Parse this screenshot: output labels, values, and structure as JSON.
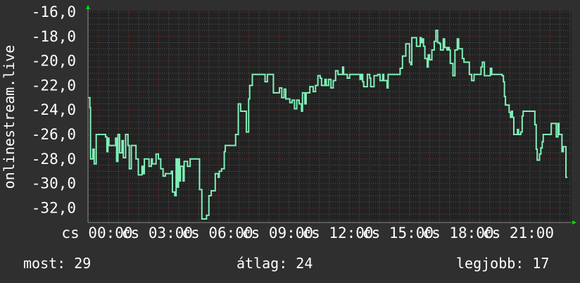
{
  "chart_data": {
    "type": "line",
    "title": "",
    "ylabel": "onlinestream.live",
    "xlabel": "",
    "ylim": [
      -33.2,
      -15.9
    ],
    "xlim": [
      "23:28",
      "23:22"
    ],
    "yticks": [
      "-16,0",
      "-18,0",
      "-20,0",
      "-22,0",
      "-24,0",
      "-26,0",
      "-28,0",
      "-30,0",
      "-32,0"
    ],
    "ytick_values": [
      -16,
      -18,
      -20,
      -22,
      -24,
      -26,
      -28,
      -30,
      -32
    ],
    "xticks": [
      "cs 00:00",
      "cs 03:00",
      "cs 06:00",
      "cs 09:00",
      "cs 12:00",
      "cs 15:00",
      "cs 18:00",
      "cs 21:00"
    ],
    "xtick_values": [
      "00:00",
      "03:00",
      "06:00",
      "09:00",
      "12:00",
      "15:00",
      "18:00",
      "21:00"
    ],
    "grid": true,
    "colors": {
      "background": "#2f2f2f",
      "plot": "#222222",
      "line": "#7ff0b8",
      "major_grid": "#7a3a3a",
      "minor_grid": "#555555",
      "arrow": "#00e000"
    },
    "series": [
      {
        "points": [
          [
            "-00:32",
            -23.0
          ],
          [
            "-00:26",
            -23.8
          ],
          [
            "-00:24",
            -28.0
          ],
          [
            "-00:17",
            -27.2
          ],
          [
            "-00:13",
            -28.4
          ],
          [
            "-00:07",
            -26.0
          ],
          [
            "00:21",
            -26.2
          ],
          [
            "00:25",
            -27.4
          ],
          [
            "00:28",
            -26.3
          ],
          [
            "00:31",
            -26.9
          ],
          [
            "00:51",
            -26.3
          ],
          [
            "00:54",
            -28.2
          ],
          [
            "00:58",
            -26.0
          ],
          [
            "01:03",
            -27.5
          ],
          [
            "01:10",
            -26.5
          ],
          [
            "01:14",
            -27.9
          ],
          [
            "01:21",
            -26.0
          ],
          [
            "01:28",
            -26.9
          ],
          [
            "01:32",
            -28.8
          ],
          [
            "01:38",
            -26.9
          ],
          [
            "01:52",
            -28.0
          ],
          [
            "01:59",
            -29.3
          ],
          [
            "02:10",
            -28.6
          ],
          [
            "02:13",
            -29.2
          ],
          [
            "02:17",
            -28.0
          ],
          [
            "02:31",
            -28.6
          ],
          [
            "02:38",
            -28.0
          ],
          [
            "02:41",
            -28.4
          ],
          [
            "02:52",
            -27.6
          ],
          [
            "02:59",
            -28.0
          ],
          [
            "03:06",
            -28.8
          ],
          [
            "03:13",
            -29.4
          ],
          [
            "03:20",
            -29.2
          ],
          [
            "03:38",
            -29.0
          ],
          [
            "03:41",
            -30.7
          ],
          [
            "03:48",
            -31.0
          ],
          [
            "03:52",
            -28.0
          ],
          [
            "03:55",
            -30.3
          ],
          [
            "03:59",
            -28.0
          ],
          [
            "04:02",
            -29.8
          ],
          [
            "04:05",
            -28.6
          ],
          [
            "04:13",
            -29.8
          ],
          [
            "04:16",
            -28.2
          ],
          [
            "04:26",
            -28.6
          ],
          [
            "04:34",
            -28.0
          ],
          [
            "05:02",
            -30.5
          ],
          [
            "05:09",
            -32.9
          ],
          [
            "05:23",
            -32.6
          ],
          [
            "05:30",
            -31.0
          ],
          [
            "05:37",
            -30.6
          ],
          [
            "05:49",
            -29.2
          ],
          [
            "05:58",
            -29.5
          ],
          [
            "06:01",
            -29.0
          ],
          [
            "06:08",
            -28.8
          ],
          [
            "06:16",
            -27.4
          ],
          [
            "06:19",
            -26.9
          ],
          [
            "06:50",
            -26.0
          ],
          [
            "06:58",
            -23.5
          ],
          [
            "07:05",
            -24.1
          ],
          [
            "07:22",
            -25.8
          ],
          [
            "07:29",
            -23.1
          ],
          [
            "07:32",
            -22.0
          ],
          [
            "07:40",
            -21.1
          ],
          [
            "08:18",
            -21.7
          ],
          [
            "08:25",
            -21.1
          ],
          [
            "08:43",
            -22.6
          ],
          [
            "09:01",
            -22.2
          ],
          [
            "09:08",
            -23.0
          ],
          [
            "09:15",
            -22.3
          ],
          [
            "09:20",
            -23.1
          ],
          [
            "09:32",
            -23.4
          ],
          [
            "09:39",
            -23.2
          ],
          [
            "09:46",
            -23.9
          ],
          [
            "09:53",
            -23.2
          ],
          [
            "10:00",
            -23.5
          ],
          [
            "10:07",
            -24.1
          ],
          [
            "10:10",
            -22.6
          ],
          [
            "10:17",
            -23.5
          ],
          [
            "10:21",
            -22.6
          ],
          [
            "10:32",
            -22.1
          ],
          [
            "10:42",
            -22.5
          ],
          [
            "10:49",
            -22.0
          ],
          [
            "10:56",
            -21.2
          ],
          [
            "11:03",
            -21.4
          ],
          [
            "11:07",
            -22.0
          ],
          [
            "11:17",
            -21.5
          ],
          [
            "11:21",
            -22.0
          ],
          [
            "11:28",
            -21.5
          ],
          [
            "11:35",
            -22.2
          ],
          [
            "11:42",
            -21.6
          ],
          [
            "11:49",
            -20.8
          ],
          [
            "11:56",
            -21.1
          ],
          [
            "12:10",
            -20.5
          ],
          [
            "12:13",
            -21.1
          ],
          [
            "12:24",
            -21.4
          ],
          [
            "12:31",
            -21.1
          ],
          [
            "13:02",
            -21.5
          ],
          [
            "13:06",
            -21.1
          ],
          [
            "13:10",
            -21.7
          ],
          [
            "13:13",
            -22.1
          ],
          [
            "13:24",
            -21.1
          ],
          [
            "13:31",
            -21.4
          ],
          [
            "13:34",
            -22.1
          ],
          [
            "13:44",
            -21.2
          ],
          [
            "13:55",
            -21.1
          ],
          [
            "14:02",
            -21.6
          ],
          [
            "14:10",
            -21.1
          ],
          [
            "14:13",
            -21.6
          ],
          [
            "14:23",
            -22.2
          ],
          [
            "14:26",
            -21.1
          ],
          [
            "15:02",
            -20.6
          ],
          [
            "15:09",
            -19.6
          ],
          [
            "15:19",
            -18.6
          ],
          [
            "15:30",
            -20.1
          ],
          [
            "15:34",
            -20.3
          ],
          [
            "15:37",
            -18.1
          ],
          [
            "15:51",
            -18.8
          ],
          [
            "16:02",
            -18.1
          ],
          [
            "16:05",
            -18.5
          ],
          [
            "16:09",
            -18.2
          ],
          [
            "16:12",
            -18.8
          ],
          [
            "16:16",
            -19.8
          ],
          [
            "16:23",
            -20.5
          ],
          [
            "16:26",
            -19.5
          ],
          [
            "16:30",
            -19.9
          ],
          [
            "16:37",
            -19.1
          ],
          [
            "16:44",
            -18.4
          ],
          [
            "16:49",
            -17.5
          ],
          [
            "16:54",
            -18.5
          ],
          [
            "17:00",
            -18.6
          ],
          [
            "17:03",
            -19.1
          ],
          [
            "17:11",
            -18.2
          ],
          [
            "17:15",
            -18.9
          ],
          [
            "17:22",
            -19.1
          ],
          [
            "17:25",
            -18.9
          ],
          [
            "17:29",
            -19.1
          ],
          [
            "17:32",
            -20.2
          ],
          [
            "17:40",
            -21.2
          ],
          [
            "17:46",
            -19.1
          ],
          [
            "17:53",
            -18.2
          ],
          [
            "17:57",
            -19.0
          ],
          [
            "18:08",
            -19.8
          ],
          [
            "18:13",
            -20.1
          ],
          [
            "18:29",
            -21.1
          ],
          [
            "18:36",
            -21.6
          ],
          [
            "18:43",
            -21.1
          ],
          [
            "19:04",
            -20.5
          ],
          [
            "19:08",
            -20.1
          ],
          [
            "19:14",
            -21.2
          ],
          [
            "19:32",
            -20.6
          ],
          [
            "19:36",
            -21.1
          ],
          [
            "20:07",
            -21.2
          ],
          [
            "20:11",
            -21.7
          ],
          [
            "20:14",
            -22.9
          ],
          [
            "20:17",
            -23.6
          ],
          [
            "20:28",
            -24.2
          ],
          [
            "20:32",
            -24.6
          ],
          [
            "20:35",
            -24.1
          ],
          [
            "20:38",
            -24.6
          ],
          [
            "20:42",
            -26.0
          ],
          [
            "20:53",
            -25.6
          ],
          [
            "20:56",
            -26.0
          ],
          [
            "21:03",
            -25.8
          ],
          [
            "21:07",
            -24.5
          ],
          [
            "21:10",
            -24.1
          ],
          [
            "21:45",
            -25.2
          ],
          [
            "21:49",
            -27.2
          ],
          [
            "21:52",
            -28.1
          ],
          [
            "21:59",
            -27.6
          ],
          [
            "22:03",
            -27.1
          ],
          [
            "22:07",
            -26.6
          ],
          [
            "22:10",
            -26.0
          ],
          [
            "22:34",
            -25.1
          ],
          [
            "22:49",
            -26.2
          ],
          [
            "22:54",
            -25.1
          ],
          [
            "22:57",
            -26.0
          ],
          [
            "23:06",
            -27.4
          ],
          [
            "23:10",
            -27.0
          ],
          [
            "23:18",
            -29.5
          ],
          [
            "23:22",
            -29.5
          ]
        ]
      }
    ]
  },
  "legend": {
    "current": "most: 29",
    "average": "átlag: 24",
    "best": "legjobb: 17"
  }
}
